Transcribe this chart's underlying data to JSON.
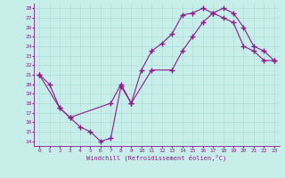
{
  "xlabel": "Windchill (Refroidissement éolien,°C)",
  "background_color": "#c8eeea",
  "line_color": "#8b1a8b",
  "xlim": [
    -0.5,
    23.5
  ],
  "ylim": [
    13.5,
    28.5
  ],
  "xticks": [
    0,
    1,
    2,
    3,
    4,
    5,
    6,
    7,
    8,
    9,
    10,
    11,
    12,
    13,
    14,
    15,
    16,
    17,
    18,
    19,
    20,
    21,
    22,
    23
  ],
  "yticks": [
    14,
    15,
    16,
    17,
    18,
    19,
    20,
    21,
    22,
    23,
    24,
    25,
    26,
    27,
    28
  ],
  "line1_x": [
    0,
    1,
    2,
    3,
    4,
    5,
    6,
    7,
    8,
    9,
    10,
    11,
    12,
    13,
    14,
    15,
    16,
    17,
    18,
    19,
    20,
    21,
    22,
    23
  ],
  "line1_y": [
    21.0,
    20.0,
    17.5,
    16.5,
    15.5,
    15.0,
    14.0,
    14.3,
    19.8,
    18.0,
    21.5,
    23.5,
    24.3,
    25.3,
    27.3,
    27.5,
    28.0,
    27.5,
    27.0,
    26.5,
    24.0,
    23.5,
    22.5,
    22.5
  ],
  "line2_x": [
    0,
    2,
    3,
    7,
    8,
    9,
    11,
    13,
    14,
    15,
    16,
    17,
    18,
    19,
    20,
    21,
    22,
    23
  ],
  "line2_y": [
    21.0,
    17.5,
    16.5,
    18.0,
    20.0,
    18.0,
    21.5,
    21.5,
    23.5,
    25.0,
    26.5,
    27.5,
    28.0,
    27.5,
    26.0,
    24.0,
    23.5,
    22.5
  ]
}
